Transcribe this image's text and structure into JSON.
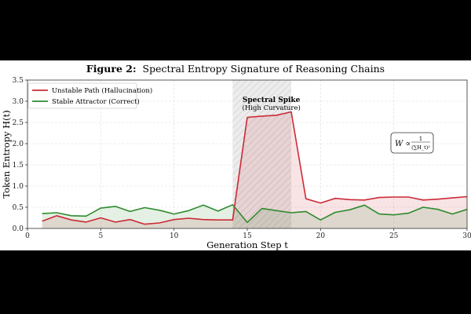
{
  "figure": {
    "label": "Figure 2:",
    "title": "Spectral Entropy Signature of Reasoning Chains"
  },
  "chart_data": {
    "type": "line",
    "xlabel": "Generation Step t",
    "ylabel": "Token Entropy H(t)",
    "xlim": [
      0,
      30
    ],
    "ylim": [
      0,
      3.5
    ],
    "x_ticks": [
      0,
      5,
      10,
      15,
      20,
      25,
      30
    ],
    "y_ticks": [
      0.0,
      0.5,
      1.0,
      1.5,
      2.0,
      2.5,
      3.0,
      3.5
    ],
    "grid": true,
    "legend_position": "top-left",
    "series": [
      {
        "name": "Unstable Path (Hallucination)",
        "color": "#cc2a36",
        "fill": true,
        "x": [
          1,
          2,
          3,
          4,
          5,
          6,
          7,
          8,
          9,
          10,
          11,
          12,
          13,
          14,
          15,
          16,
          17,
          18,
          19,
          20,
          21,
          22,
          23,
          24,
          25,
          26,
          27,
          28,
          29,
          30
        ],
        "values": [
          0.17,
          0.3,
          0.2,
          0.15,
          0.25,
          0.15,
          0.21,
          0.1,
          0.13,
          0.21,
          0.24,
          0.21,
          0.2,
          0.2,
          2.62,
          2.65,
          2.67,
          2.75,
          0.7,
          0.6,
          0.71,
          0.68,
          0.67,
          0.73,
          0.74,
          0.74,
          0.67,
          0.69,
          0.72,
          0.75
        ]
      },
      {
        "name": "Stable Attractor (Correct)",
        "color": "#2e8b2e",
        "fill": true,
        "x": [
          1,
          2,
          3,
          4,
          5,
          6,
          7,
          8,
          9,
          10,
          11,
          12,
          13,
          14,
          15,
          16,
          17,
          18,
          19,
          20,
          21,
          22,
          23,
          24,
          25,
          26,
          27,
          28,
          29,
          30
        ],
        "values": [
          0.35,
          0.37,
          0.3,
          0.29,
          0.48,
          0.52,
          0.4,
          0.49,
          0.43,
          0.34,
          0.42,
          0.55,
          0.41,
          0.56,
          0.14,
          0.47,
          0.42,
          0.37,
          0.4,
          0.2,
          0.38,
          0.44,
          0.55,
          0.34,
          0.32,
          0.36,
          0.5,
          0.45,
          0.34,
          0.45
        ]
      }
    ],
    "highlight_region": {
      "x_range": [
        14,
        18
      ],
      "label": "Spectral Spike",
      "sublabel": "(High Curvature)"
    },
    "annotation": {
      "lhs": "W ∝",
      "numerator": "1",
      "denominator": "(∑H_t)²"
    }
  }
}
